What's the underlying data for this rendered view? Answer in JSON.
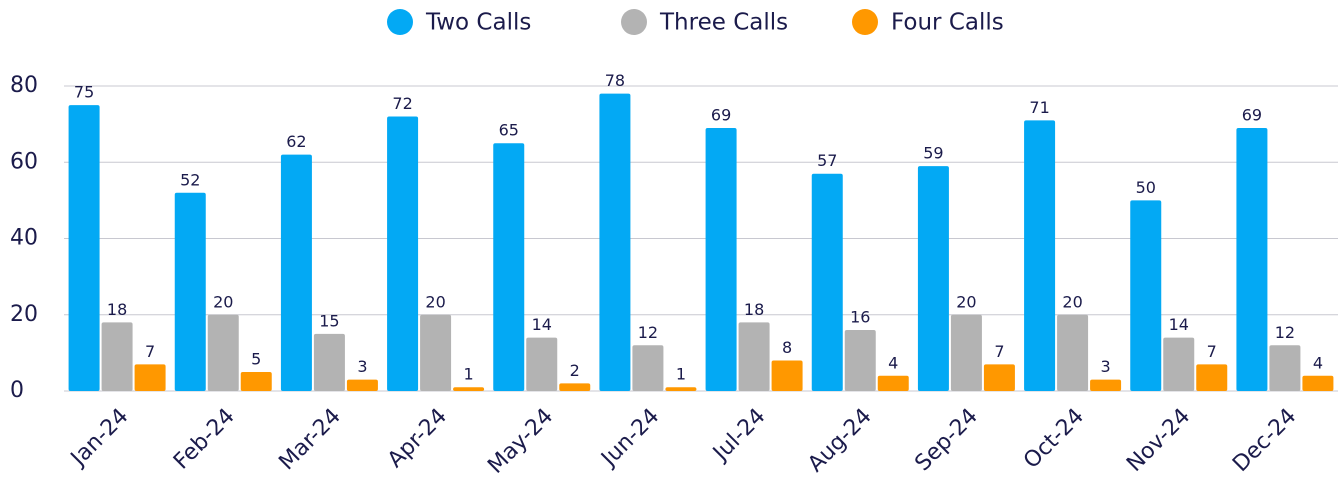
{
  "chart_data": {
    "type": "bar",
    "categories": [
      "Jan-24",
      "Feb-24",
      "Mar-24",
      "Apr-24",
      "May-24",
      "Jun-24",
      "Jul-24",
      "Aug-24",
      "Sep-24",
      "Oct-24",
      "Nov-24",
      "Dec-24"
    ],
    "series": [
      {
        "name": "Two Calls",
        "color": "#03a9f4",
        "values": [
          75,
          52,
          62,
          72,
          65,
          78,
          69,
          57,
          59,
          71,
          50,
          69
        ]
      },
      {
        "name": "Three Calls",
        "color": "#b3b3b3",
        "values": [
          18,
          20,
          15,
          20,
          14,
          12,
          18,
          16,
          20,
          20,
          14,
          12
        ]
      },
      {
        "name": "Four Calls",
        "color": "#ff9800",
        "values": [
          7,
          5,
          3,
          1,
          2,
          1,
          8,
          4,
          7,
          3,
          7,
          4
        ]
      }
    ],
    "ylim": [
      0,
      80
    ],
    "yticks": [
      0,
      20,
      40,
      60,
      80
    ],
    "grid": true,
    "legend": "top"
  }
}
